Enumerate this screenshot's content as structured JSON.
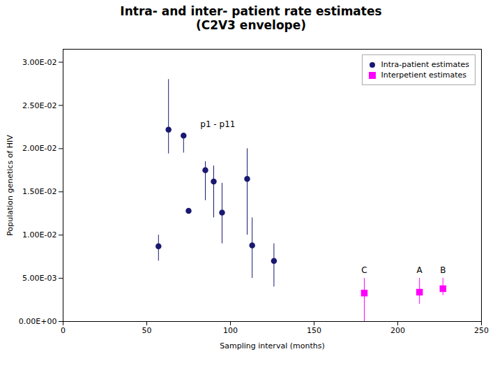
{
  "chart_data": {
    "type": "scatter",
    "title": "Intra- and inter- patient rate estimates\n(C2V3 envelope)",
    "xlabel": "Sampling interval (months)",
    "ylabel": "Population genetics of HIV",
    "xlim": [
      0,
      250
    ],
    "ylim": [
      0.0,
      0.0315
    ],
    "xticks": [
      0,
      50,
      100,
      150,
      200,
      250
    ],
    "yticks": [
      {
        "value": 0.0,
        "label": "0.00E+00"
      },
      {
        "value": 0.005,
        "label": "5.00E-03"
      },
      {
        "value": 0.01,
        "label": "1.00E-02"
      },
      {
        "value": 0.015,
        "label": "1.50E-02"
      },
      {
        "value": 0.02,
        "label": "2.00E-02"
      },
      {
        "value": 0.025,
        "label": "2.50E-02"
      },
      {
        "value": 0.03,
        "label": "3.00E-02"
      }
    ],
    "grid": false,
    "legend": "upper right",
    "series": [
      {
        "name": "Intra-patient estimates",
        "color": "#191970",
        "marker": "circle",
        "x": [
          57,
          63,
          72,
          75,
          85,
          90,
          95,
          110,
          113,
          126
        ],
        "values": [
          0.0087,
          0.0222,
          0.0215,
          0.0128,
          0.0175,
          0.0162,
          0.0126,
          0.0165,
          0.0088,
          0.007
        ],
        "yerr_low": [
          0.0017,
          0.0028,
          0.002,
          0.0,
          0.0035,
          0.0042,
          0.0036,
          0.0065,
          0.0038,
          0.003
        ],
        "yerr_high": [
          0.0013,
          0.0058,
          0.0,
          0.0,
          0.001,
          0.0018,
          0.0034,
          0.0035,
          0.0032,
          0.002
        ]
      },
      {
        "name": "Interpetient estimates",
        "color": "#ff00ff",
        "marker": "square",
        "x": [
          180,
          213,
          227
        ],
        "values": [
          0.0033,
          0.0034,
          0.0038
        ],
        "yerr_low": [
          0.0033,
          0.0014,
          0.0008
        ],
        "yerr_high": [
          0.0017,
          0.0016,
          0.0012
        ],
        "labels": [
          "C",
          "A",
          "B"
        ]
      }
    ],
    "annotations": [
      {
        "text": "p1 - p11",
        "x": 82,
        "y": 0.0228
      }
    ]
  }
}
